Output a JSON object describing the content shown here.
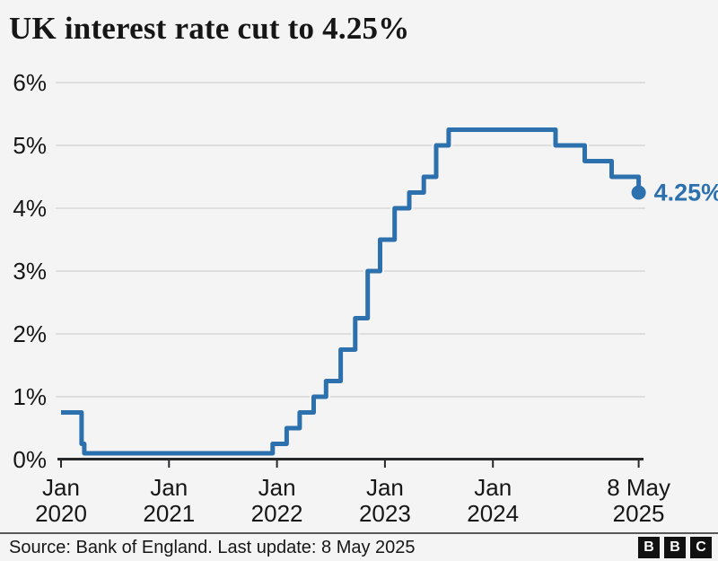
{
  "title": "UK interest rate cut to 4.25%",
  "chart_data": {
    "type": "line",
    "subtype": "step",
    "title": "UK interest rate cut to 4.25%",
    "xlabel": "",
    "ylabel": "",
    "ylim": [
      0,
      6
    ],
    "grid": true,
    "y_ticks": [
      {
        "label": "0%",
        "value": 0
      },
      {
        "label": "1%",
        "value": 1
      },
      {
        "label": "2%",
        "value": 2
      },
      {
        "label": "3%",
        "value": 3
      },
      {
        "label": "4%",
        "value": 4
      },
      {
        "label": "5%",
        "value": 5
      },
      {
        "label": "6%",
        "value": 6
      }
    ],
    "x_ticks": [
      {
        "top": "Jan",
        "bottom": "2020",
        "year": 2020
      },
      {
        "top": "Jan",
        "bottom": "2021",
        "year": 2021
      },
      {
        "top": "Jan",
        "bottom": "2022",
        "year": 2022
      },
      {
        "top": "Jan",
        "bottom": "2023",
        "year": 2023
      },
      {
        "top": "Jan",
        "bottom": "2024",
        "year": 2024
      },
      {
        "top": "8 May",
        "bottom": "2025",
        "year": 2025.35
      }
    ],
    "series": [
      {
        "name": "UK interest rate",
        "color": "#2d70ae",
        "points": [
          {
            "date": "Jan 2020",
            "year": 2020.0,
            "rate": 0.75
          },
          {
            "date": "Mar 2020",
            "year": 2020.19,
            "rate": 0.25
          },
          {
            "date": "Mar 2020",
            "year": 2020.215,
            "rate": 0.1
          },
          {
            "date": "Dec 2021",
            "year": 2021.96,
            "rate": 0.25
          },
          {
            "date": "Feb 2022",
            "year": 2022.09,
            "rate": 0.5
          },
          {
            "date": "Mar 2022",
            "year": 2022.21,
            "rate": 0.75
          },
          {
            "date": "May 2022",
            "year": 2022.34,
            "rate": 1.0
          },
          {
            "date": "Jun 2022",
            "year": 2022.455,
            "rate": 1.25
          },
          {
            "date": "Aug 2022",
            "year": 2022.59,
            "rate": 1.75
          },
          {
            "date": "Sep 2022",
            "year": 2022.725,
            "rate": 2.25
          },
          {
            "date": "Nov 2022",
            "year": 2022.84,
            "rate": 3.0
          },
          {
            "date": "Dec 2022",
            "year": 2022.955,
            "rate": 3.5
          },
          {
            "date": "Feb 2023",
            "year": 2023.09,
            "rate": 4.0
          },
          {
            "date": "Mar 2023",
            "year": 2023.225,
            "rate": 4.25
          },
          {
            "date": "May 2023",
            "year": 2023.36,
            "rate": 4.5
          },
          {
            "date": "Jun 2023",
            "year": 2023.475,
            "rate": 5.0
          },
          {
            "date": "Aug 2023",
            "year": 2023.59,
            "rate": 5.25
          },
          {
            "date": "Aug 2024",
            "year": 2024.58,
            "rate": 5.0
          },
          {
            "date": "Nov 2024",
            "year": 2024.85,
            "rate": 4.75
          },
          {
            "date": "Feb 2025",
            "year": 2025.1,
            "rate": 4.5
          },
          {
            "date": "8 May 2025",
            "year": 2025.35,
            "rate": 4.25
          }
        ]
      }
    ],
    "end_label": "4.25%"
  },
  "colors": {
    "background": "#f4f4f4",
    "line": "#2d70ae",
    "grid": "#d7d7d7",
    "axis": "#26282a",
    "text": "#161616"
  },
  "footer": {
    "source": "Source: Bank of England. Last update: 8 May 2025",
    "logo_letters": [
      "B",
      "B",
      "C"
    ]
  }
}
